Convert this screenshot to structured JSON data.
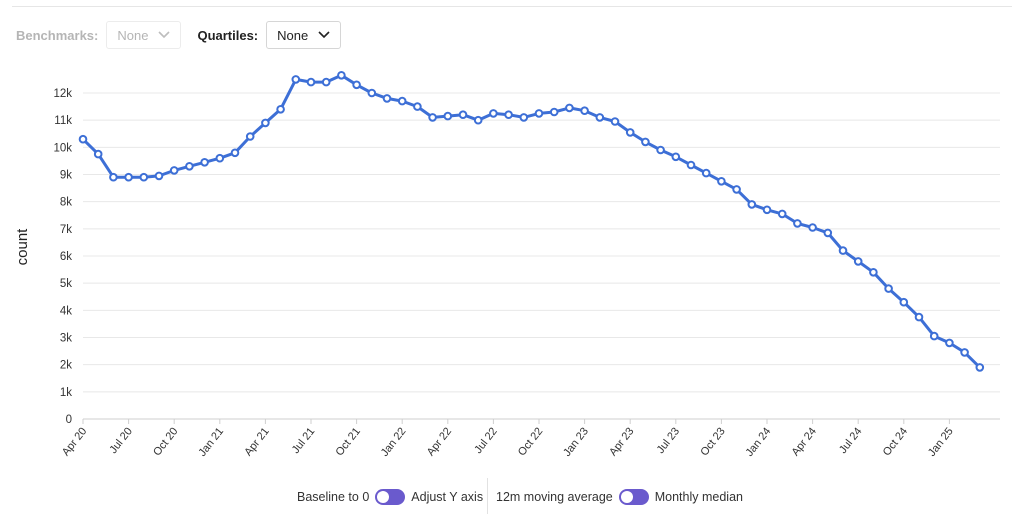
{
  "controls": {
    "benchmarks_label": "Benchmarks:",
    "benchmarks_value": "None",
    "quartiles_label": "Quartiles:",
    "quartiles_value": "None"
  },
  "footer": {
    "baseline_label": "Baseline to 0",
    "adjust_label": "Adjust Y axis",
    "moving_avg_label": "12m moving average",
    "median_label": "Monthly median"
  },
  "colors": {
    "line": "#3d6fd6",
    "toggle": "#6a5acd",
    "grid": "#e8e8e8"
  },
  "chart_data": {
    "type": "line",
    "ylabel": "count",
    "ylim": [
      0,
      12500
    ],
    "yticks": [
      0,
      1000,
      2000,
      3000,
      4000,
      5000,
      6000,
      7000,
      8000,
      9000,
      10000,
      11000,
      12000
    ],
    "ytick_labels": [
      "0",
      "1k",
      "2k",
      "3k",
      "4k",
      "5k",
      "6k",
      "7k",
      "8k",
      "9k",
      "10k",
      "11k",
      "12k"
    ],
    "x_labels": [
      "Apr 20",
      "Jul 20",
      "Oct 20",
      "Jan 21",
      "Apr 21",
      "Jul 21",
      "Oct 21",
      "Jan 22",
      "Apr 22",
      "Jul 22",
      "Oct 22",
      "Jan 23",
      "Apr 23",
      "Jul 23",
      "Oct 23",
      "Jan 24",
      "Apr 24",
      "Jul 24",
      "Oct 24",
      "Jan 25"
    ],
    "x": [
      "2020-04",
      "2020-05",
      "2020-06",
      "2020-07",
      "2020-08",
      "2020-09",
      "2020-10",
      "2020-11",
      "2020-12",
      "2021-01",
      "2021-02",
      "2021-03",
      "2021-04",
      "2021-05",
      "2021-06",
      "2021-07",
      "2021-08",
      "2021-09",
      "2021-10",
      "2021-11",
      "2021-12",
      "2022-01",
      "2022-02",
      "2022-03",
      "2022-04",
      "2022-05",
      "2022-06",
      "2022-07",
      "2022-08",
      "2022-09",
      "2022-10",
      "2022-11",
      "2022-12",
      "2023-01",
      "2023-02",
      "2023-03",
      "2023-04",
      "2023-05",
      "2023-06",
      "2023-07",
      "2023-08",
      "2023-09",
      "2023-10",
      "2023-11",
      "2023-12",
      "2024-01",
      "2024-02",
      "2024-03",
      "2024-04",
      "2024-05",
      "2024-06",
      "2024-07",
      "2024-08",
      "2024-09",
      "2024-10",
      "2024-11",
      "2024-12",
      "2025-01",
      "2025-02",
      "2025-03"
    ],
    "values": [
      10300,
      9750,
      8900,
      8900,
      8900,
      8950,
      9150,
      9300,
      9450,
      9600,
      9800,
      10400,
      10900,
      11400,
      12500,
      12400,
      12400,
      12650,
      12300,
      12000,
      11800,
      11700,
      11500,
      11100,
      11150,
      11200,
      11000,
      11250,
      11200,
      11100,
      11250,
      11300,
      11450,
      11350,
      11100,
      10950,
      10550,
      10200,
      9900,
      9650,
      9350,
      9050,
      8750,
      8450,
      7900,
      7700,
      7550,
      7200,
      7050,
      6850,
      6200,
      5800,
      5400,
      4800,
      4300,
      3750,
      3050,
      2800,
      2450,
      1900
    ],
    "grid": true,
    "legend": "none"
  }
}
